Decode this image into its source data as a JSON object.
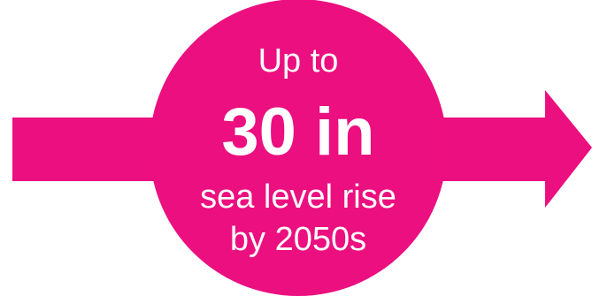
{
  "colors": {
    "accent": "#EC0F80",
    "text": "#FFFFFF",
    "background": "#FFFFFF"
  },
  "callout": {
    "line1": "Up to",
    "value": "30 in",
    "line3": "sea level rise",
    "line4": "by 2050s"
  },
  "icons": {
    "arrow": "right-arrow-icon",
    "circle": "circle-badge"
  }
}
